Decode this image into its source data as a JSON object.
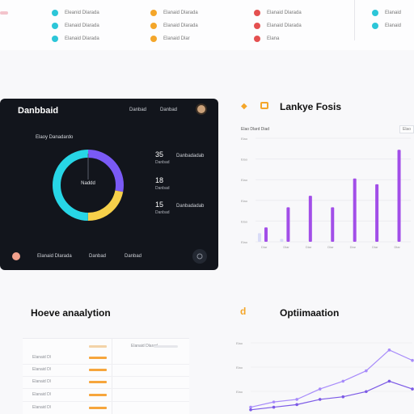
{
  "top_strip": {
    "columns": [
      {
        "color": "#2cc6d8",
        "items": [
          "Eleanid Dlarada",
          "Elanaid Dlarada",
          "Elanaid Dlarada"
        ]
      },
      {
        "color": "#f4a62a",
        "items": [
          "Elanaid Dlarada",
          "Elanaid Dlarada",
          "Elanaid Dlar"
        ]
      },
      {
        "color": "#e45050",
        "items": [
          "Elanaid Dlarada",
          "Elanaid Dlarada",
          "Elana"
        ]
      },
      {
        "color": "#2cc6d8",
        "items": [
          "Elanaid",
          "Elanaid"
        ]
      }
    ]
  },
  "dashboard": {
    "title": "Danbbaid",
    "nav": [
      "Danbad",
      "Danbad"
    ],
    "subtitle": "Elaoy Danadardo",
    "donut_center": "Naddd",
    "donut_colors": [
      "#7a5af5",
      "#f6d04a",
      "#27d6e6"
    ],
    "donut_values": [
      28,
      22,
      50
    ],
    "stats": [
      {
        "value": "35",
        "caption": "Danbad",
        "side": "Danbadadab"
      },
      {
        "value": "18",
        "caption": "Danbad",
        "side": ""
      },
      {
        "value": "15",
        "caption": "Danbad",
        "side": "Danbadadab"
      }
    ],
    "footer": [
      "Elanaid Dlarada",
      "Danbad",
      "Danbad"
    ]
  },
  "bar_chart_card": {
    "title": "Lankye Fosis",
    "subtitle": "Elao Dlard Diad",
    "button": "Elao",
    "chart_data": {
      "type": "bar",
      "categories": [
        "Dlar",
        "Dlar",
        "Dlar",
        "Dlar",
        "Dlar",
        "Dlar",
        "Dlar"
      ],
      "series": [
        {
          "values": [
            5,
            12,
            16,
            12,
            22,
            20,
            32
          ]
        },
        {
          "values": [
            3,
            1,
            0,
            0,
            0,
            0,
            0
          ]
        }
      ],
      "ylim": [
        0,
        36
      ],
      "ytick_labels": [
        "Elao",
        "Elao",
        "Elao",
        "Elao",
        "Elao",
        "Elao"
      ],
      "colors": [
        "#a24ee8",
        "#d9dcf7"
      ],
      "xlabel": "",
      "ylabel": ""
    }
  },
  "hover_analytics": {
    "title": "Hoeve anaalytion",
    "header_label": "Elanaid Dlarad",
    "rows": [
      "Elanaid Dl",
      "Elanaid Dl",
      "Elanaid Dl",
      "Elanaid Dl",
      "Elanaid Dl"
    ],
    "bar_color": "#f6a53c"
  },
  "optimization": {
    "title": "Optiimaation",
    "icon_glyph": "d",
    "chart_data": {
      "type": "line",
      "x": [
        1,
        2,
        3,
        4,
        5,
        6,
        7,
        8
      ],
      "series": [
        {
          "values": [
            2,
            4,
            5,
            9,
            12,
            16,
            24,
            20
          ]
        },
        {
          "values": [
            1,
            2,
            3,
            5,
            6,
            8,
            12,
            9
          ]
        }
      ],
      "ylim": [
        0,
        28
      ],
      "ytick_labels": [
        "Elao",
        "Elao",
        "Elao"
      ],
      "colors": [
        "#a78bfa",
        "#7c5ae6"
      ],
      "xlabel": "",
      "ylabel": ""
    }
  }
}
